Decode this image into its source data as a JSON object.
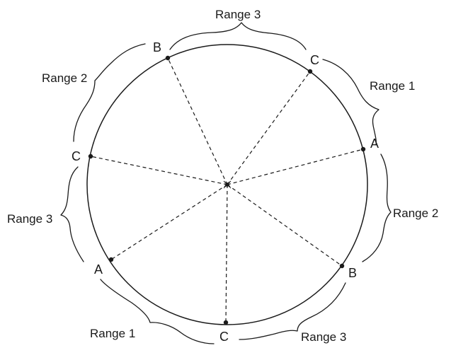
{
  "points": [
    {
      "id": "p1",
      "letter": "B"
    },
    {
      "id": "p2",
      "letter": "C"
    },
    {
      "id": "p3",
      "letter": "A"
    },
    {
      "id": "p4",
      "letter": "B"
    },
    {
      "id": "p5",
      "letter": "C"
    },
    {
      "id": "p6",
      "letter": "A"
    },
    {
      "id": "p7",
      "letter": "C"
    }
  ],
  "ranges": [
    {
      "id": "r-top",
      "label": "Range 3"
    },
    {
      "id": "r-upper-right",
      "label": "Range 1"
    },
    {
      "id": "r-right",
      "label": "Range 2"
    },
    {
      "id": "r-lower-right",
      "label": "Range 3"
    },
    {
      "id": "r-lower-left",
      "label": "Range 1"
    },
    {
      "id": "r-left",
      "label": "Range 3"
    },
    {
      "id": "r-upper-left",
      "label": "Range 2"
    }
  ]
}
